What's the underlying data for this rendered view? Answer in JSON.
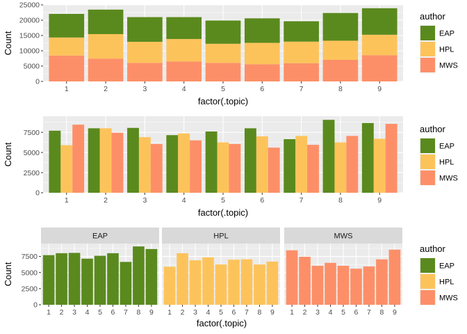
{
  "colors": {
    "EAP": "#5a8a1e",
    "HPL": "#fdc35b",
    "MWS": "#fd8f68",
    "panel_bg": "#ebebeb",
    "strip_bg": "#d9d9d9",
    "grid": "#ffffff"
  },
  "legend": {
    "title": "author",
    "items": [
      "EAP",
      "HPL",
      "MWS"
    ]
  },
  "chart_data": [
    {
      "type": "bar",
      "stacked": true,
      "categories": [
        "1",
        "2",
        "3",
        "4",
        "5",
        "6",
        "7",
        "8",
        "9"
      ],
      "series": [
        {
          "name": "EAP",
          "values": [
            7700,
            8000,
            8050,
            7150,
            7600,
            8000,
            6650,
            9050,
            8650
          ]
        },
        {
          "name": "HPL",
          "values": [
            5900,
            8000,
            6900,
            7350,
            6250,
            7000,
            7050,
            6250,
            6700
          ]
        },
        {
          "name": "MWS",
          "values": [
            8450,
            7450,
            6050,
            6500,
            6050,
            5600,
            5950,
            7050,
            8550
          ]
        }
      ],
      "xlabel": "factor(.topic)",
      "ylabel": "Count",
      "ylim": [
        0,
        25000
      ],
      "yticks": [
        0,
        5000,
        10000,
        15000,
        20000,
        25000
      ],
      "grid": true,
      "legend_position": "right"
    },
    {
      "type": "bar",
      "dodged": true,
      "categories": [
        "1",
        "2",
        "3",
        "4",
        "5",
        "6",
        "7",
        "8",
        "9"
      ],
      "series": [
        {
          "name": "EAP",
          "values": [
            7700,
            8000,
            8050,
            7150,
            7600,
            8000,
            6650,
            9050,
            8650
          ]
        },
        {
          "name": "HPL",
          "values": [
            5900,
            8000,
            6900,
            7350,
            6250,
            7000,
            7050,
            6250,
            6700
          ]
        },
        {
          "name": "MWS",
          "values": [
            8450,
            7450,
            6050,
            6500,
            6050,
            5600,
            5950,
            7050,
            8550
          ]
        }
      ],
      "xlabel": "factor(.topic)",
      "ylabel": "Count",
      "ylim": [
        0,
        9500
      ],
      "yticks": [
        0,
        2500,
        5000,
        7500
      ],
      "grid": true,
      "legend_position": "right"
    },
    {
      "type": "bar",
      "faceted": true,
      "facets": [
        "EAP",
        "HPL",
        "MWS"
      ],
      "categories": [
        "1",
        "2",
        "3",
        "4",
        "5",
        "6",
        "7",
        "8",
        "9"
      ],
      "series": [
        {
          "name": "EAP",
          "values": [
            7700,
            8000,
            8050,
            7150,
            7600,
            8000,
            6650,
            9050,
            8650
          ]
        },
        {
          "name": "HPL",
          "values": [
            5900,
            8000,
            6900,
            7350,
            6250,
            7000,
            7050,
            6250,
            6700
          ]
        },
        {
          "name": "MWS",
          "values": [
            8450,
            7450,
            6050,
            6500,
            6050,
            5600,
            5950,
            7050,
            8550
          ]
        }
      ],
      "xlabel": "factor(.topic)",
      "ylabel": "Count",
      "ylim": [
        0,
        9500
      ],
      "yticks": [
        0,
        2500,
        5000,
        7500
      ],
      "grid": true,
      "legend_position": "right"
    }
  ]
}
